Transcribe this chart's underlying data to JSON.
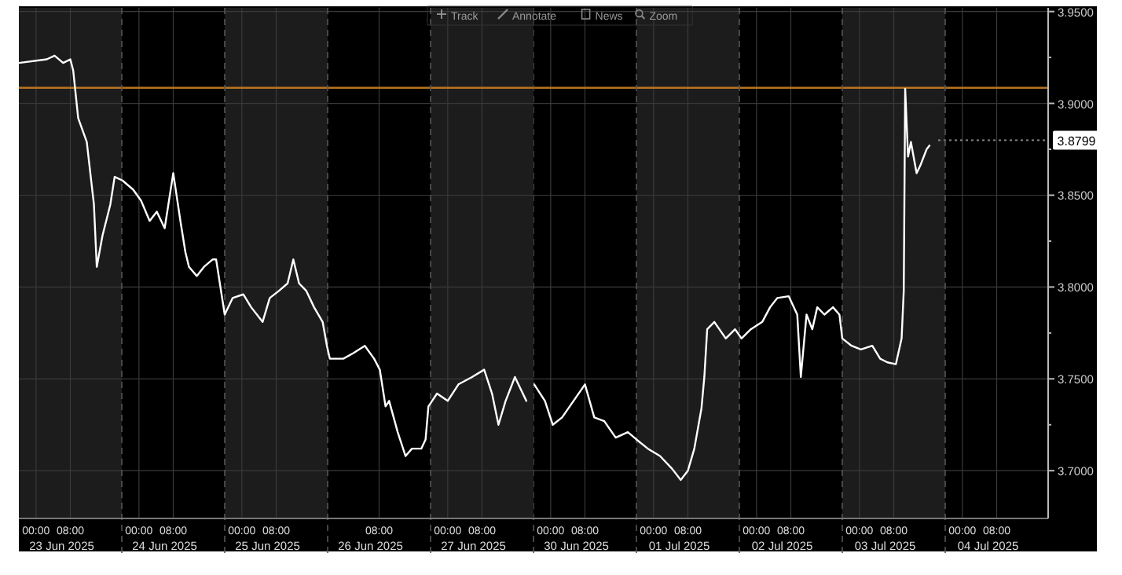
{
  "chart_data": [
    {
      "type": "line",
      "color": "#ffffff",
      "x": [
        "2025-06-22T20:00",
        "2025-06-23T02:30",
        "2025-06-23T04:20",
        "2025-06-23T06:20",
        "2025-06-23T08:00",
        "2025-06-23T08:40",
        "2025-06-23T09:50",
        "2025-06-23T11:50",
        "2025-06-23T13:30",
        "2025-06-23T14:10",
        "2025-06-23T15:30",
        "2025-06-23T17:20",
        "2025-06-23T18:20",
        "2025-06-23T20:10",
        "2025-06-23T22:40",
        "2025-06-24T00:30",
        "2025-06-24T02:30",
        "2025-06-24T04:10",
        "2025-06-24T06:00",
        "2025-06-24T08:00",
        "2025-06-24T09:40",
        "2025-06-24T10:50",
        "2025-06-24T11:40",
        "2025-06-24T13:30",
        "2025-06-24T15:10",
        "2025-06-24T17:10",
        "2025-06-24T18:00",
        "2025-06-24T20:00",
        "2025-06-24T21:50",
        "2025-06-25T00:20",
        "2025-06-25T02:10",
        "2025-06-25T04:50",
        "2025-06-25T06:30",
        "2025-06-25T08:40",
        "2025-06-25T10:40",
        "2025-06-25T12:00",
        "2025-06-25T13:20",
        "2025-06-25T15:00",
        "2025-06-25T16:50",
        "2025-06-25T18:50",
        "2025-06-25T19:50",
        "2025-06-25T20:30",
        "2025-06-25T23:40",
        "2025-06-26T02:00",
        "2025-06-26T04:40",
        "2025-06-26T06:50",
        "2025-06-26T08:10",
        "2025-06-26T09:30",
        "2025-06-26T10:20",
        "2025-06-26T12:20",
        "2025-06-26T14:10",
        "2025-06-26T15:40",
        "2025-06-26T17:50",
        "2025-06-26T18:50",
        "2025-06-26T19:30",
        "2025-06-26T21:30",
        "2025-06-27T00:00",
        "2025-06-27T02:30",
        "2025-06-27T05:40",
        "2025-06-27T08:30",
        "2025-06-27T10:20",
        "2025-06-27T11:50",
        "2025-06-27T13:30",
        "2025-06-27T15:40",
        "2025-06-27T18:20"
      ],
      "values": [
        3.922,
        3.924,
        3.926,
        3.922,
        3.924,
        3.918,
        3.892,
        3.879,
        3.845,
        3.811,
        3.828,
        3.845,
        3.86,
        3.858,
        3.853,
        3.847,
        3.836,
        3.841,
        3.832,
        3.862,
        3.836,
        3.819,
        3.811,
        3.806,
        3.811,
        3.815,
        3.815,
        3.785,
        3.794,
        3.796,
        3.789,
        3.781,
        3.794,
        3.798,
        3.802,
        3.815,
        3.802,
        3.798,
        3.789,
        3.781,
        3.768,
        3.761,
        3.761,
        3.764,
        3.768,
        3.761,
        3.755,
        3.735,
        3.738,
        3.721,
        3.708,
        3.712,
        3.712,
        3.717,
        3.735,
        3.742,
        3.738,
        3.747,
        3.751,
        3.755,
        3.742,
        3.725,
        3.738,
        3.751,
        3.738
      ],
      "xlim": [
        "2025-06-22T20:00",
        "2025-06-27T20:00"
      ],
      "xticks": [
        {
          "value": "2025-06-23T00:00",
          "label": "00:00"
        },
        {
          "value": "2025-06-23T08:00",
          "label": "08:00"
        },
        {
          "value": "2025-06-24T00:00",
          "label": "00:00"
        },
        {
          "value": "2025-06-24T08:00",
          "label": "08:00"
        },
        {
          "value": "2025-06-25T00:00",
          "label": "00:00"
        },
        {
          "value": "2025-06-25T08:00",
          "label": "08:00"
        },
        {
          "value": "2025-06-26T08:00",
          "label": "08:00"
        },
        {
          "value": "2025-06-27T00:00",
          "label": "00:00"
        },
        {
          "value": "2025-06-27T08:00",
          "label": "08:00"
        }
      ],
      "x2lim": [
        "2025-06-22T20:00",
        "2025-06-27T20:00"
      ],
      "x2ticks": [
        {
          "value": "2025-06-23T06:00",
          "label": "23 Jun 2025"
        },
        {
          "value": "2025-06-24T06:00",
          "label": "24 Jun 2025"
        },
        {
          "value": "2025-06-25T06:00",
          "label": "25 Jun 2025"
        },
        {
          "value": "2025-06-26T06:00",
          "label": "26 Jun 2025"
        },
        {
          "value": "2025-06-27T06:00",
          "label": "27 Jun 2025"
        }
      ],
      "ylim": [
        3.674,
        3.952
      ],
      "yticks": [
        3.7,
        3.75,
        3.8,
        3.85,
        3.9,
        3.95
      ],
      "tick_labels": "x",
      "grid": true,
      "bands": [
        {
          "axis": "x",
          "from": "2025-06-22T20:00",
          "to": "2025-06-23T20:00",
          "color": "#1c1c1c"
        },
        {
          "axis": "x",
          "from": "2025-06-24T20:00",
          "to": "2025-06-25T20:00",
          "color": "#1c1c1c"
        },
        {
          "axis": "x",
          "from": "2025-06-26T20:00",
          "to": "2025-06-27T20:00",
          "color": "#1c1c1c"
        }
      ],
      "ref_lines": [
        {
          "axis": "y",
          "value": 3.9085,
          "color": "#b8731f",
          "line_style": "solid"
        },
        {
          "axis": "x",
          "value": "2025-06-23T20:00",
          "color": "#555555",
          "line_style": "dashed"
        },
        {
          "axis": "x",
          "value": "2025-06-24T20:00",
          "color": "#555555",
          "line_style": "dashed"
        },
        {
          "axis": "x",
          "value": "2025-06-25T20:00",
          "color": "#555555",
          "line_style": "dashed"
        },
        {
          "axis": "x",
          "value": "2025-06-26T20:00",
          "color": "#555555",
          "line_style": "dashed"
        }
      ],
      "annotations": [
        "Track",
        "Annotate",
        "News",
        "Zoom"
      ]
    },
    {
      "type": "line",
      "color": "#ffffff",
      "x": [
        "2025-06-29T20:10",
        "2025-06-29T22:40",
        "2025-06-30T00:30",
        "2025-06-30T02:40",
        "2025-06-30T05:20",
        "2025-06-30T08:00",
        "2025-06-30T10:10",
        "2025-06-30T12:30",
        "2025-06-30T15:10",
        "2025-06-30T18:00",
        "2025-06-30T20:00",
        "2025-06-30T22:40",
        "2025-07-01T01:30",
        "2025-07-01T04:20",
        "2025-07-01T06:20",
        "2025-07-01T08:00",
        "2025-07-01T09:30",
        "2025-07-01T11:10",
        "2025-07-01T11:50",
        "2025-07-01T12:30",
        "2025-07-01T14:10",
        "2025-07-01T16:50",
        "2025-07-01T19:00",
        "2025-07-01T20:30",
        "2025-07-01T22:40",
        "2025-07-02T01:20",
        "2025-07-02T03:10",
        "2025-07-02T04:50",
        "2025-07-02T07:30",
        "2025-07-02T09:30",
        "2025-07-02T10:20",
        "2025-07-02T11:40",
        "2025-07-02T13:00",
        "2025-07-02T14:10",
        "2025-07-02T15:50",
        "2025-07-02T17:50",
        "2025-07-02T19:20",
        "2025-07-02T20:00",
        "2025-07-02T22:10",
        "2025-07-03T00:20",
        "2025-07-03T03:00",
        "2025-07-03T04:50",
        "2025-07-03T06:30",
        "2025-07-03T08:30",
        "2025-07-03T09:50",
        "2025-07-03T10:20",
        "2025-07-03T10:40",
        "2025-07-03T11:20",
        "2025-07-03T12:00",
        "2025-07-03T13:20",
        "2025-07-03T14:10",
        "2025-07-03T15:40",
        "2025-07-03T16:20"
      ],
      "values": [
        3.747,
        3.738,
        3.725,
        3.729,
        3.738,
        3.747,
        3.729,
        3.727,
        3.718,
        3.721,
        3.717,
        3.712,
        3.708,
        3.701,
        3.695,
        3.7,
        3.712,
        3.734,
        3.751,
        3.777,
        3.781,
        3.772,
        3.777,
        3.772,
        3.777,
        3.781,
        3.789,
        3.794,
        3.795,
        3.785,
        3.751,
        3.785,
        3.777,
        3.789,
        3.785,
        3.789,
        3.785,
        3.772,
        3.768,
        3.766,
        3.768,
        3.761,
        3.759,
        3.758,
        3.772,
        3.798,
        3.908,
        3.871,
        3.879,
        3.862,
        3.866,
        3.875,
        3.877
      ],
      "xlim": [
        "2025-06-29T20:00",
        "2025-07-04T20:00"
      ],
      "xticks": [
        {
          "value": "2025-06-30T00:00",
          "label": "00:00"
        },
        {
          "value": "2025-06-30T08:00",
          "label": "08:00"
        },
        {
          "value": "2025-07-01T00:00",
          "label": "00:00"
        },
        {
          "value": "2025-07-01T08:00",
          "label": "08:00"
        },
        {
          "value": "2025-07-02T00:00",
          "label": "00:00"
        },
        {
          "value": "2025-07-02T08:00",
          "label": "08:00"
        },
        {
          "value": "2025-07-03T00:00",
          "label": "00:00"
        },
        {
          "value": "2025-07-03T08:00",
          "label": "08:00"
        },
        {
          "value": "2025-07-04T00:00",
          "label": "00:00"
        },
        {
          "value": "2025-07-04T08:00",
          "label": "08:00"
        }
      ],
      "x2lim": [
        "2025-06-29T20:00",
        "2025-07-04T20:00"
      ],
      "x2ticks": [
        {
          "value": "2025-06-30T06:00",
          "label": "30 Jun 2025"
        },
        {
          "value": "2025-07-01T06:00",
          "label": "01 Jul 2025"
        },
        {
          "value": "2025-07-02T06:00",
          "label": "02 Jul 2025"
        },
        {
          "value": "2025-07-03T06:00",
          "label": "03 Jul 2025"
        },
        {
          "value": "2025-07-04T06:00",
          "label": "04 Jul 2025"
        }
      ],
      "ylim": [
        3.674,
        3.952
      ],
      "yticks": [
        {
          "value": 3.7,
          "label": "3.7000"
        },
        {
          "value": 3.725,
          "label": null
        },
        {
          "value": 3.75,
          "label": "3.7500"
        },
        {
          "value": 3.775,
          "label": null
        },
        {
          "value": 3.8,
          "label": "3.8000"
        },
        {
          "value": 3.825,
          "label": null
        },
        {
          "value": 3.85,
          "label": "3.8500"
        },
        {
          "value": 3.875,
          "label": null
        },
        {
          "value": 3.9,
          "label": "3.9000"
        },
        {
          "value": 3.925,
          "label": null
        },
        {
          "value": 3.95,
          "label": "3.9500"
        }
      ],
      "grid": true,
      "bands": [
        {
          "axis": "x",
          "from": "2025-06-30T20:00",
          "to": "2025-07-01T20:00",
          "color": "#1c1c1c"
        },
        {
          "axis": "x",
          "from": "2025-07-02T20:00",
          "to": "2025-07-03T20:00",
          "color": "#1c1c1c"
        }
      ],
      "ref_lines": [
        {
          "axis": "y",
          "value": 3.9085,
          "color": "#b8731f",
          "line_style": "solid"
        },
        {
          "axis": "y",
          "value": 3.8799,
          "label": "3.8799",
          "color": "#888888",
          "line_style": "dotted"
        },
        {
          "axis": "x",
          "value": "2025-06-29T20:00",
          "color": "#555555",
          "line_style": "dashed"
        },
        {
          "axis": "x",
          "value": "2025-06-30T20:00",
          "color": "#555555",
          "line_style": "dashed"
        },
        {
          "axis": "x",
          "value": "2025-07-01T20:00",
          "color": "#555555",
          "line_style": "dashed"
        },
        {
          "axis": "x",
          "value": "2025-07-02T20:00",
          "color": "#555555",
          "line_style": "dashed"
        },
        {
          "axis": "x",
          "value": "2025-07-03T20:00",
          "color": "#555555",
          "line_style": "dashed"
        }
      ]
    }
  ]
}
